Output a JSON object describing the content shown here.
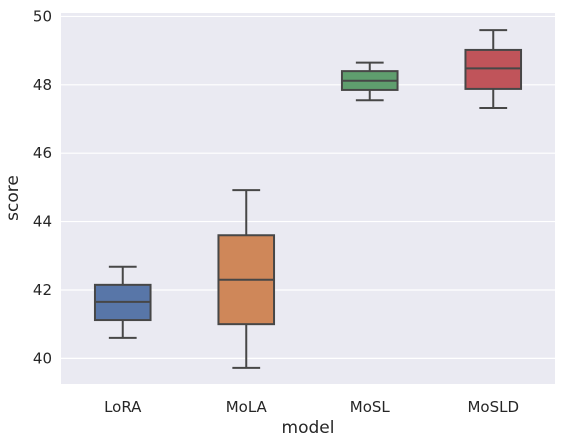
{
  "chart_data": {
    "type": "box",
    "xlabel": "model",
    "ylabel": "score",
    "ylim": [
      39.25,
      50.1
    ],
    "yticks": [
      40,
      42,
      44,
      46,
      48,
      50
    ],
    "grid": true,
    "style": {
      "background": "#EAEAF2",
      "grid_color": "#ffffff",
      "line_color": "#474747"
    },
    "categories": [
      "LoRA",
      "MoLA",
      "MoSL",
      "MoSLD"
    ],
    "boxes": [
      {
        "name": "LoRA",
        "whisker_low": 40.6,
        "q1": 41.12,
        "median": 41.65,
        "q3": 42.15,
        "whisker_high": 42.68,
        "color": "#5876A8"
      },
      {
        "name": "MoLA",
        "whisker_low": 39.72,
        "q1": 41.0,
        "median": 42.3,
        "q3": 43.6,
        "whisker_high": 44.92,
        "color": "#CF8759"
      },
      {
        "name": "MoSL",
        "whisker_low": 47.55,
        "q1": 47.85,
        "median": 48.12,
        "q3": 48.4,
        "whisker_high": 48.65,
        "color": "#5F9E6E"
      },
      {
        "name": "MoSLD",
        "whisker_low": 47.32,
        "q1": 47.88,
        "median": 48.48,
        "q3": 49.02,
        "whisker_high": 49.6,
        "color": "#C0545A"
      }
    ]
  }
}
